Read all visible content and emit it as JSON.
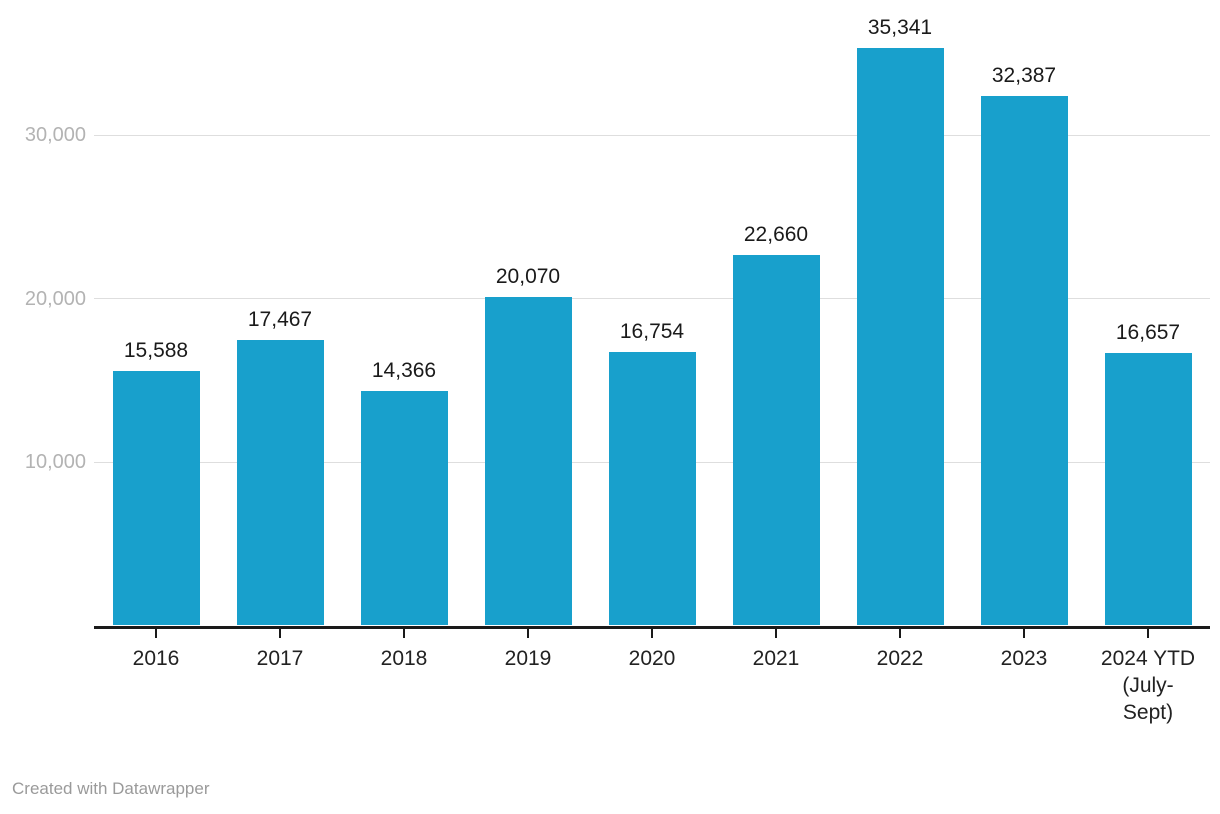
{
  "chart_data": {
    "type": "bar",
    "title": "",
    "xlabel": "",
    "ylabel": "",
    "categories": [
      "2016",
      "2017",
      "2018",
      "2019",
      "2020",
      "2021",
      "2022",
      "2023",
      "2024 YTD\n(July-\nSept)"
    ],
    "values": [
      15588,
      17467,
      14366,
      20070,
      16754,
      22660,
      35341,
      32387,
      16657
    ],
    "value_labels": [
      "15,588",
      "17,467",
      "14,366",
      "20,070",
      "16,754",
      "22,660",
      "35,341",
      "32,387",
      "16,657"
    ],
    "yticks": [
      {
        "value": 10000,
        "label": "10,000"
      },
      {
        "value": 20000,
        "label": "20,000"
      },
      {
        "value": 30000,
        "label": "30,000"
      }
    ],
    "ylim": [
      0,
      38250
    ],
    "grid": true,
    "legend": "none",
    "colors": {
      "bar": "#18a0cc",
      "gridline": "#dedede",
      "axis": "#1a1a1a",
      "y_tick_label": "#b3b3b3",
      "x_tick_label": "#222222",
      "value_label": "#1a1a1a",
      "footer": "#9a9a9a"
    }
  },
  "footer": {
    "attribution": "Created with Datawrapper"
  }
}
